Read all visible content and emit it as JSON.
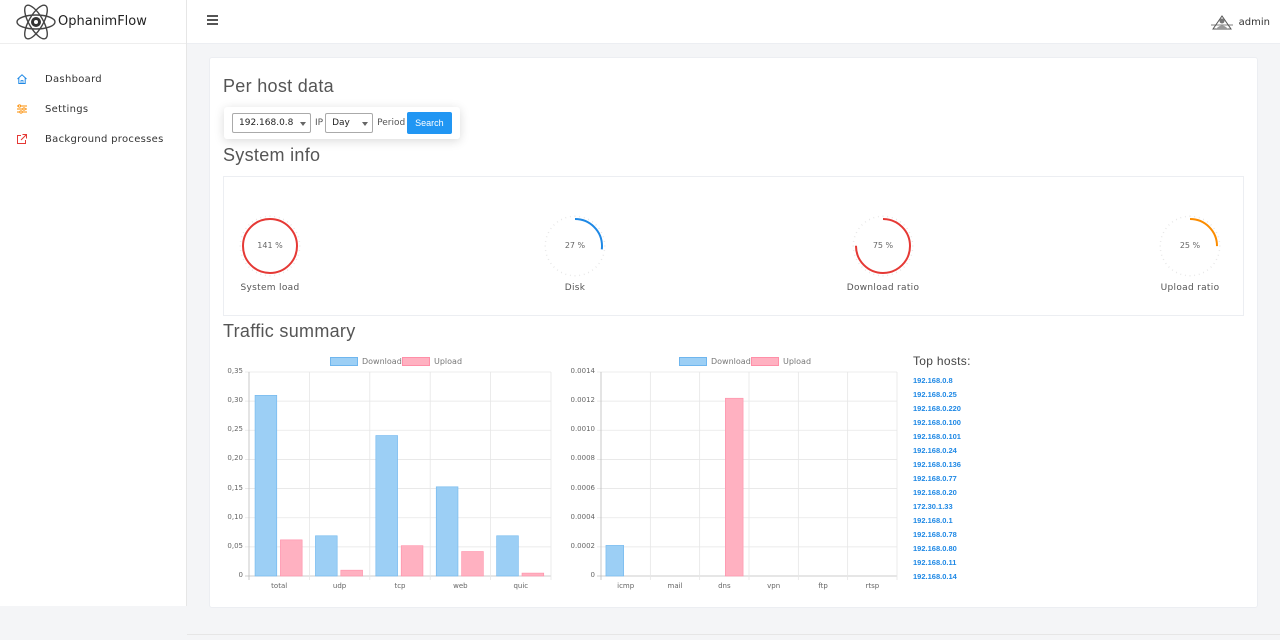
{
  "app": {
    "name": "OphanimFlow"
  },
  "sidebar": {
    "items": [
      {
        "label": "Dashboard",
        "icon": "home-icon"
      },
      {
        "label": "Settings",
        "icon": "sliders-icon"
      },
      {
        "label": "Background processes",
        "icon": "external-link-icon"
      }
    ]
  },
  "topbar": {
    "user": "admin",
    "menu_icon": "hamburger-icon",
    "avatar_icon": "user-avatar-icon"
  },
  "page": {
    "title": "Per host data",
    "filter": {
      "ip_value": "192.168.0.8",
      "ip_label": "IP",
      "period_value": "Day",
      "period_label": "Period",
      "search_label": "Search"
    },
    "system_info": {
      "title": "System info",
      "gauges": [
        {
          "label": "System load",
          "value_text": "141 %",
          "fraction": 1.0,
          "color": "#e53935"
        },
        {
          "label": "Disk",
          "value_text": "27 %",
          "fraction": 0.27,
          "color": "#1e88e5"
        },
        {
          "label": "Download ratio",
          "value_text": "75 %",
          "fraction": 0.75,
          "color": "#e53935"
        },
        {
          "label": "Upload ratio",
          "value_text": "25 %",
          "fraction": 0.25,
          "color": "#fb8c00"
        }
      ]
    },
    "traffic_summary": {
      "title": "Traffic summary"
    },
    "top_hosts": {
      "title": "Top hosts:",
      "hosts": [
        "192.168.0.8",
        "192.168.0.25",
        "192.168.0.220",
        "192.168.0.100",
        "192.168.0.101",
        "192.168.0.24",
        "192.168.0.136",
        "192.168.0.77",
        "192.168.0.20",
        "172.30.1.33",
        "192.168.0.1",
        "192.168.0.78",
        "192.168.0.80",
        "192.168.0.11",
        "192.168.0.14"
      ]
    }
  },
  "chart_data": [
    {
      "type": "bar",
      "categories": [
        "total",
        "udp",
        "tcp",
        "web",
        "quic"
      ],
      "series": [
        {
          "name": "Download",
          "values": [
            0.31,
            0.069,
            0.241,
            0.153,
            0.069
          ],
          "color": "#9ccff5"
        },
        {
          "name": "Upload",
          "values": [
            0.062,
            0.01,
            0.052,
            0.042,
            0.005
          ],
          "color": "#ffb1c1"
        }
      ],
      "ylim": [
        0,
        0.35
      ],
      "yticks": [
        "0",
        "0,05",
        "0,10",
        "0,15",
        "0,20",
        "0,25",
        "0,30",
        "0,35"
      ],
      "legend": "top"
    },
    {
      "type": "bar",
      "categories": [
        "icmp",
        "mail",
        "dns",
        "vpn",
        "ftp",
        "rtsp"
      ],
      "series": [
        {
          "name": "Download",
          "values": [
            0.00021,
            0,
            0,
            0,
            0,
            0
          ],
          "color": "#9ccff5"
        },
        {
          "name": "Upload",
          "values": [
            0,
            0,
            0.00122,
            0,
            0,
            0
          ],
          "color": "#ffb1c1"
        }
      ],
      "ylim": [
        0,
        0.0014
      ],
      "yticks": [
        "0",
        "0.0002",
        "0.0004",
        "0.0006",
        "0.0008",
        "0.0010",
        "0.0012",
        "0.0014"
      ],
      "legend": "top"
    }
  ]
}
